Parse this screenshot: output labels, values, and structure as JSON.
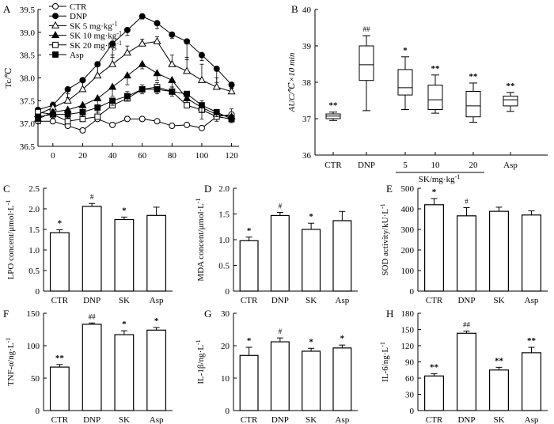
{
  "chart_data": [
    {
      "panel": "A",
      "type": "line",
      "title": "",
      "xlabel": "",
      "ylabel": "Tc/℃",
      "x": [
        -10,
        0,
        10,
        20,
        30,
        40,
        50,
        60,
        70,
        80,
        90,
        100,
        110,
        120
      ],
      "xticks": [
        "0",
        "20",
        "40",
        "60",
        "80",
        "100",
        "120"
      ],
      "xtick_values": [
        0,
        20,
        40,
        60,
        80,
        100,
        120
      ],
      "yticks": [
        "36.5",
        "37.0",
        "37.5",
        "38.0",
        "38.5",
        "39.0",
        "39.5"
      ],
      "ylim": [
        36.5,
        39.5
      ],
      "xlim": [
        -10,
        125
      ],
      "series": [
        {
          "name": "CTR",
          "marker": "circle-open",
          "values": [
            37.05,
            37.05,
            36.95,
            36.85,
            37.1,
            36.97,
            37.1,
            37.1,
            37.05,
            36.95,
            36.97,
            36.9,
            37.15,
            37.2
          ],
          "errors": [
            0.08,
            0.06,
            0.05,
            0.05,
            0.06,
            0.05,
            0.06,
            0.05,
            0.05,
            0.05,
            0.05,
            0.05,
            0.1,
            0.12
          ]
        },
        {
          "name": "DNP",
          "marker": "circle-filled",
          "values": [
            37.3,
            37.4,
            37.75,
            37.95,
            38.3,
            38.75,
            39.05,
            39.35,
            39.2,
            38.95,
            38.8,
            38.5,
            38.2,
            37.85
          ],
          "errors": [
            0.12,
            0.15,
            0.18,
            0.2,
            0.22,
            0.3,
            0.12,
            0.06,
            0.12,
            0.08,
            0.4,
            0.12,
            0.3,
            0.08
          ]
        },
        {
          "name": "SK 5 mg·kg⁻¹",
          "marker": "triangle-open",
          "values": [
            37.2,
            37.35,
            37.5,
            37.75,
            38.05,
            38.3,
            38.55,
            38.75,
            38.8,
            38.3,
            38.15,
            37.95,
            37.8,
            37.7
          ],
          "errors": [
            0.1,
            0.12,
            0.15,
            0.18,
            0.2,
            0.2,
            0.15,
            0.1,
            0.1,
            0.2,
            0.3,
            0.35,
            0.2,
            0.08
          ]
        },
        {
          "name": "SK 10 mg·kg⁻¹",
          "marker": "triangle-filled",
          "values": [
            37.1,
            37.25,
            37.3,
            37.4,
            37.55,
            37.8,
            38.05,
            38.3,
            38.1,
            37.95,
            37.55,
            37.35,
            37.2,
            37.15
          ],
          "errors": [
            0.1,
            0.1,
            0.12,
            0.15,
            0.2,
            0.2,
            0.2,
            0.1,
            0.15,
            0.15,
            0.2,
            0.25,
            0.15,
            0.1
          ]
        },
        {
          "name": "SK 20 mg·kg⁻¹",
          "marker": "square-open",
          "values": [
            37.25,
            37.2,
            37.05,
            37.1,
            37.15,
            37.4,
            37.55,
            37.75,
            37.8,
            37.7,
            37.4,
            37.3,
            37.15,
            37.1
          ],
          "errors": [
            0.1,
            0.1,
            0.1,
            0.1,
            0.1,
            0.15,
            0.15,
            0.1,
            0.1,
            0.1,
            0.2,
            0.2,
            0.1,
            0.08
          ]
        },
        {
          "name": "Asp",
          "marker": "square-filled",
          "values": [
            37.15,
            37.2,
            37.2,
            37.25,
            37.35,
            37.5,
            37.6,
            37.75,
            37.75,
            37.7,
            37.65,
            37.4,
            37.25,
            37.1
          ],
          "errors": [
            0.08,
            0.08,
            0.08,
            0.1,
            0.1,
            0.1,
            0.1,
            0.1,
            0.1,
            0.1,
            0.1,
            0.15,
            0.1,
            0.08
          ]
        }
      ]
    },
    {
      "panel": "B",
      "type": "box",
      "ylabel": "AUC/℃×10 min",
      "ylim": [
        36,
        40
      ],
      "yticks": [
        "36",
        "37",
        "38",
        "39",
        "40"
      ],
      "categories": [
        "CTR",
        "DNP",
        "5",
        "10",
        "20",
        "Asp"
      ],
      "group_label": "SK/mg·kg⁻¹",
      "boxes": [
        {
          "min": 36.95,
          "q1": 37.0,
          "median": 37.07,
          "q3": 37.13,
          "max": 37.18,
          "sig": "**"
        },
        {
          "min": 37.22,
          "q1": 38.05,
          "median": 38.48,
          "q3": 39.0,
          "max": 39.28,
          "sig": "##"
        },
        {
          "min": 37.25,
          "q1": 37.65,
          "median": 37.85,
          "q3": 38.35,
          "max": 38.7,
          "sig": "*"
        },
        {
          "min": 37.15,
          "q1": 37.25,
          "median": 37.52,
          "q3": 37.92,
          "max": 38.2,
          "sig": "**"
        },
        {
          "min": 36.9,
          "q1": 37.05,
          "median": 37.35,
          "q3": 37.75,
          "max": 37.98,
          "sig": "**"
        },
        {
          "min": 37.2,
          "q1": 37.35,
          "median": 37.52,
          "q3": 37.62,
          "max": 37.72,
          "sig": "**"
        }
      ]
    },
    {
      "panel": "C",
      "type": "bar",
      "ylabel": "LPO concent/μmol·L⁻¹",
      "categories": [
        "CTR",
        "DNP",
        "SK",
        "Asp"
      ],
      "values": [
        1.42,
        2.06,
        1.74,
        1.84
      ],
      "errors": [
        0.07,
        0.07,
        0.06,
        0.2
      ],
      "sig": [
        "*",
        "#",
        "*",
        ""
      ],
      "ylim": [
        0,
        2.5
      ],
      "yticks": [
        "0",
        "0.5",
        "1.0",
        "1.5",
        "2.0",
        "2.5"
      ]
    },
    {
      "panel": "D",
      "type": "bar",
      "ylabel": "MDA concent/μmol·L⁻¹",
      "categories": [
        "CTR",
        "DNP",
        "SK",
        "Asp"
      ],
      "values": [
        0.98,
        1.47,
        1.2,
        1.37
      ],
      "errors": [
        0.07,
        0.06,
        0.12,
        0.18
      ],
      "sig": [
        "*",
        "#",
        "*",
        ""
      ],
      "ylim": [
        0,
        2.0
      ],
      "yticks": [
        "0",
        "0.5",
        "1.0",
        "1.5",
        "2.0"
      ]
    },
    {
      "panel": "E",
      "type": "bar",
      "ylabel": "SOD activity/kU·L⁻¹",
      "categories": [
        "CTR",
        "DNP",
        "SK",
        "Asp"
      ],
      "values": [
        420,
        366,
        388,
        370
      ],
      "errors": [
        30,
        40,
        20,
        20
      ],
      "sig": [
        "*",
        "#",
        "",
        ""
      ],
      "ylim": [
        0,
        500
      ],
      "yticks": [
        "0",
        "100",
        "200",
        "300",
        "400",
        "500"
      ]
    },
    {
      "panel": "F",
      "type": "bar",
      "ylabel": "TNF-α/ng·L⁻¹",
      "categories": [
        "CTR",
        "DNP",
        "SK",
        "Asp"
      ],
      "values": [
        67,
        133,
        117,
        124
      ],
      "errors": [
        4,
        2,
        6,
        4
      ],
      "sig": [
        "**",
        "##",
        "*",
        "*"
      ],
      "ylim": [
        0,
        150
      ],
      "yticks": [
        "0",
        "50",
        "100",
        "150"
      ]
    },
    {
      "panel": "G",
      "type": "bar",
      "ylabel": "IL-1β/ng·L⁻¹",
      "categories": [
        "CTR",
        "DNP",
        "SK",
        "Asp"
      ],
      "values": [
        17,
        21.2,
        18.3,
        19.3
      ],
      "errors": [
        2.5,
        1.2,
        0.9,
        0.9
      ],
      "sig": [
        "*",
        "#",
        "*",
        "*"
      ],
      "ylim": [
        0,
        30
      ],
      "yticks": [
        "0",
        "10",
        "20",
        "30"
      ]
    },
    {
      "panel": "H",
      "type": "bar",
      "ylabel": "IL-6/ng·L⁻¹",
      "categories": [
        "CTR",
        "DNP",
        "SK",
        "Asp"
      ],
      "values": [
        64,
        143,
        75,
        107
      ],
      "errors": [
        4,
        4,
        5,
        10
      ],
      "sig": [
        "**",
        "##",
        "**",
        "**"
      ],
      "ylim": [
        0,
        180
      ],
      "yticks": [
        "0",
        "30",
        "60",
        "90",
        "120",
        "150",
        "180"
      ]
    }
  ]
}
